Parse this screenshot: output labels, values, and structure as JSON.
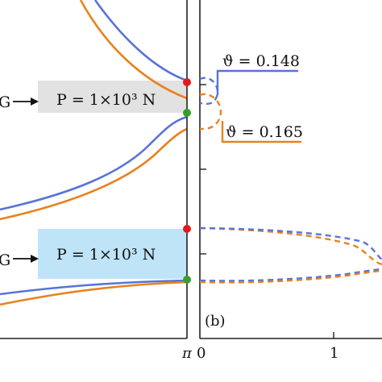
{
  "colors": {
    "blue": "#5873d8",
    "orange": "#e8821e",
    "box_gray": "#e2e2e2",
    "box_blue": "#bfe3f7",
    "marker_red": "#e31a1c",
    "marker_green": "#33a02c",
    "axis": "#222222"
  },
  "chart_data": [
    {
      "panel": "left",
      "type": "line",
      "x_tick_labels": [
        "π"
      ],
      "series": [
        {
          "color": "blue",
          "band": "upper-1",
          "points": [
            [
              0.72,
              5.2
            ],
            [
              0.8,
              4.5
            ],
            [
              0.88,
              4.0
            ],
            [
              0.95,
              3.7
            ],
            [
              1.0,
              3.6
            ]
          ]
        },
        {
          "color": "orange",
          "band": "upper-1",
          "points": [
            [
              0.72,
              4.8
            ],
            [
              0.8,
              4.15
            ],
            [
              0.88,
              3.75
            ],
            [
              0.95,
              3.55
            ],
            [
              1.0,
              3.5
            ]
          ]
        },
        {
          "color": "blue",
          "band": "upper-2",
          "points": [
            [
              0.0,
              1.8
            ],
            [
              0.4,
              2.3
            ],
            [
              0.7,
              2.85
            ],
            [
              0.9,
              3.2
            ],
            [
              1.0,
              3.3
            ]
          ]
        },
        {
          "color": "orange",
          "band": "upper-2",
          "points": [
            [
              0.0,
              1.65
            ],
            [
              0.4,
              2.1
            ],
            [
              0.7,
              2.65
            ],
            [
              0.9,
              3.05
            ],
            [
              1.0,
              3.2
            ]
          ]
        },
        {
          "color": "blue",
          "band": "lower",
          "points": [
            [
              0.0,
              0.75
            ],
            [
              0.3,
              0.85
            ],
            [
              0.6,
              0.93
            ],
            [
              0.85,
              0.97
            ],
            [
              1.0,
              0.98
            ]
          ]
        },
        {
          "color": "orange",
          "band": "lower",
          "points": [
            [
              0.0,
              0.55
            ],
            [
              0.3,
              0.72
            ],
            [
              0.6,
              0.88
            ],
            [
              0.85,
              0.95
            ],
            [
              1.0,
              0.97
            ]
          ]
        }
      ],
      "annotations": [
        {
          "label": "G",
          "box": "P = 1×10³ N",
          "box_color": "box_gray"
        },
        {
          "label": "G",
          "box": "P = 1×10³ N",
          "box_color": "box_blue"
        }
      ],
      "markers": [
        {
          "color": "marker_red",
          "x": 1.0,
          "y": 3.6
        },
        {
          "color": "marker_green",
          "x": 1.0,
          "y": 3.3
        },
        {
          "color": "marker_red",
          "x": 1.0,
          "y": 1.75
        },
        {
          "color": "marker_green",
          "x": 1.0,
          "y": 0.98
        }
      ]
    },
    {
      "panel": "right",
      "type": "line",
      "panel_label": "(b)",
      "x_tick_labels": [
        "0",
        "1"
      ],
      "legend": [
        {
          "name": "ϑ = 0.148",
          "color": "blue"
        },
        {
          "name": "ϑ = 0.165",
          "color": "orange"
        }
      ]
    }
  ],
  "text": {
    "pi": "π",
    "tick0": "0",
    "tick1": "1",
    "panel_b": "(b)",
    "g1": "G",
    "g2": "G",
    "box1": "P = 1×10³ N",
    "box2": "P = 1×10³ N",
    "leg_blue": "ϑ = 0.148",
    "leg_orange": "ϑ = 0.165"
  }
}
